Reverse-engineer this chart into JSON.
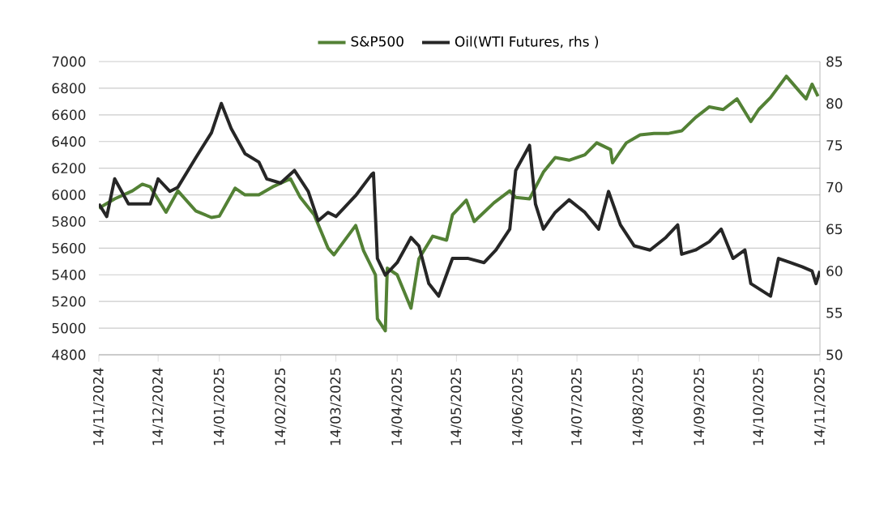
{
  "chart_data": {
    "type": "line",
    "x": [
      "2024-11-14",
      "2024-11-22",
      "2024-12-01",
      "2024-12-06",
      "2024-12-10",
      "2024-12-18",
      "2024-12-24",
      "2025-01-02",
      "2025-01-10",
      "2025-01-14",
      "2025-01-22",
      "2025-01-27",
      "2025-02-03",
      "2025-02-10",
      "2025-02-19",
      "2025-02-24",
      "2025-03-03",
      "2025-03-10",
      "2025-03-13",
      "2025-03-18",
      "2025-03-24",
      "2025-03-28",
      "2025-04-03",
      "2025-04-04",
      "2025-04-08",
      "2025-04-09",
      "2025-04-14",
      "2025-04-21",
      "2025-04-25",
      "2025-05-02",
      "2025-05-09",
      "2025-05-12",
      "2025-05-19",
      "2025-05-23",
      "2025-06-02",
      "2025-06-10",
      "2025-06-13",
      "2025-06-20",
      "2025-06-27",
      "2025-07-03",
      "2025-07-10",
      "2025-07-18",
      "2025-07-24",
      "2025-07-31",
      "2025-08-01",
      "2025-08-08",
      "2025-08-15",
      "2025-08-22",
      "2025-08-29",
      "2025-09-05",
      "2025-09-12",
      "2025-09-19",
      "2025-09-26",
      "2025-10-03",
      "2025-10-10",
      "2025-10-14",
      "2025-10-20",
      "2025-10-28",
      "2025-11-04",
      "2025-11-07",
      "2025-11-10",
      "2025-11-13"
    ],
    "series": [
      {
        "name": "S&P500",
        "color": "#538135",
        "values": [
          5900,
          5970,
          6030,
          6080,
          6060,
          5870,
          6030,
          5880,
          5830,
          5840,
          6050,
          6000,
          6000,
          6060,
          6120,
          5980,
          5850,
          5600,
          5550,
          5650,
          5770,
          5580,
          5400,
          5070,
          4980,
          5450,
          5400,
          5150,
          5520,
          5690,
          5660,
          5850,
          5960,
          5800,
          5940,
          6030,
          5980,
          5970,
          6170,
          6280,
          6260,
          6300,
          6390,
          6340,
          6240,
          6390,
          6450,
          6460,
          6460,
          6480,
          6580,
          6660,
          6640,
          6720,
          6550,
          6640,
          6730,
          6890,
          6770,
          6720,
          6830,
          6740
        ]
      },
      {
        "name": "Oil(WTI Futures, rhs )",
        "color": "#262626",
        "axis": "y2",
        "x": [
          "2024-11-14",
          "2024-11-18",
          "2024-11-22",
          "2024-11-29",
          "2024-12-05",
          "2024-12-10",
          "2024-12-14",
          "2024-12-20",
          "2024-12-24",
          "2025-01-02",
          "2025-01-10",
          "2025-01-15",
          "2025-01-20",
          "2025-01-27",
          "2025-02-03",
          "2025-02-07",
          "2025-02-14",
          "2025-02-21",
          "2025-02-28",
          "2025-03-05",
          "2025-03-10",
          "2025-03-14",
          "2025-03-24",
          "2025-04-01",
          "2025-04-02",
          "2025-04-04",
          "2025-04-08",
          "2025-04-14",
          "2025-04-21",
          "2025-04-25",
          "2025-04-30",
          "2025-05-05",
          "2025-05-12",
          "2025-05-20",
          "2025-05-28",
          "2025-06-03",
          "2025-06-10",
          "2025-06-13",
          "2025-06-20",
          "2025-06-23",
          "2025-06-27",
          "2025-07-03",
          "2025-07-10",
          "2025-07-18",
          "2025-07-25",
          "2025-07-30",
          "2025-08-05",
          "2025-08-12",
          "2025-08-20",
          "2025-08-28",
          "2025-09-03",
          "2025-09-05",
          "2025-09-12",
          "2025-09-19",
          "2025-09-25",
          "2025-10-01",
          "2025-10-07",
          "2025-10-10",
          "2025-10-20",
          "2025-10-24",
          "2025-10-30",
          "2025-11-05",
          "2025-11-10",
          "2025-11-12",
          "2025-11-14"
        ],
        "values": [
          68,
          66.5,
          71,
          68,
          68,
          68,
          71,
          69.5,
          70,
          73.5,
          76.5,
          80,
          77,
          74,
          73,
          71,
          70.5,
          72,
          69.5,
          66,
          67,
          66.5,
          69,
          71.5,
          71.7,
          61.5,
          59.5,
          61,
          64,
          63,
          58.5,
          57,
          61.5,
          61.5,
          61,
          62.5,
          65,
          72,
          75,
          68,
          65,
          67,
          68.5,
          67,
          65,
          69.5,
          65.5,
          63,
          62.5,
          64,
          65.5,
          62,
          62.5,
          63.5,
          65,
          61.5,
          62.5,
          58.5,
          57,
          61.5,
          61,
          60.5,
          60,
          58.5,
          60
        ]
      }
    ],
    "xlim": [
      "2024-11-14",
      "2025-11-14"
    ],
    "xticks": [
      {
        "value": "2024-11-14",
        "label": "14/11/2024"
      },
      {
        "value": "2024-12-14",
        "label": "14/12/2024"
      },
      {
        "value": "2025-01-14",
        "label": "14/01/2025"
      },
      {
        "value": "2025-02-14",
        "label": "14/02/2025"
      },
      {
        "value": "2025-03-14",
        "label": "14/03/2025"
      },
      {
        "value": "2025-04-14",
        "label": "14/04/2025"
      },
      {
        "value": "2025-05-14",
        "label": "14/05/2025"
      },
      {
        "value": "2025-06-14",
        "label": "14/06/2025"
      },
      {
        "value": "2025-07-14",
        "label": "14/07/2025"
      },
      {
        "value": "2025-08-14",
        "label": "14/08/2025"
      },
      {
        "value": "2025-09-14",
        "label": "14/09/2025"
      },
      {
        "value": "2025-10-14",
        "label": "14/10/2025"
      },
      {
        "value": "2025-11-14",
        "label": "14/11/2025"
      }
    ],
    "ylim": [
      4800,
      7000
    ],
    "yticks": [
      4800,
      5000,
      5200,
      5400,
      5600,
      5800,
      6000,
      6200,
      6400,
      6600,
      6800,
      7000
    ],
    "y2lim": [
      50,
      85
    ],
    "y2ticks": [
      50,
      55,
      60,
      65,
      70,
      75,
      80,
      85
    ],
    "grid": "y",
    "legend": "top"
  }
}
